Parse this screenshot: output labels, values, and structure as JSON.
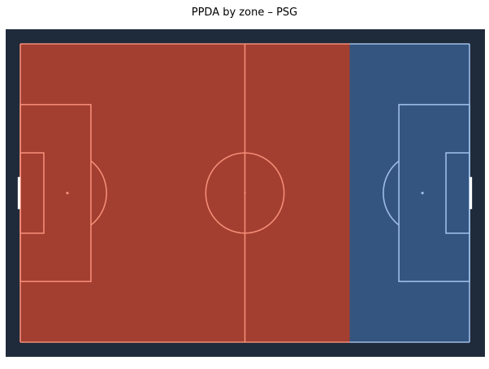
{
  "chart_data": {
    "type": "heatmap",
    "title": "PPDA by zone – PSG",
    "xlabel": "",
    "ylabel": "",
    "pitch": {
      "length": 105,
      "width": 68
    },
    "grid": false,
    "zones": [
      {
        "x_start": 0,
        "x_end": 77,
        "color": "#a23f30",
        "line_color": "#f48c77"
      },
      {
        "x_start": 77,
        "x_end": 105,
        "color": "#34557f",
        "line_color": "#9dbde6"
      }
    ]
  },
  "colors": {
    "frame": "#1f2a3a",
    "touchline": "#ffffff"
  }
}
